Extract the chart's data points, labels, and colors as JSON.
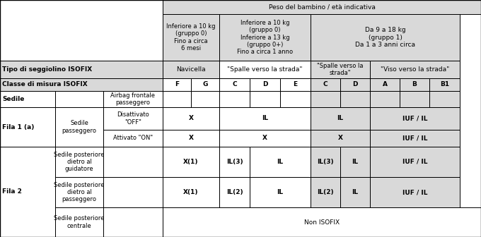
{
  "fig_w": 6.8,
  "fig_h": 3.36,
  "dpi": 100,
  "border_color": "#000000",
  "wh": "#ffffff",
  "gr": "#d9d9d9",
  "lw": 0.7,
  "fs": 6.5,
  "c0x": 0,
  "c0w": 78,
  "c1x": 78,
  "c1w": 68,
  "c2x": 146,
  "c2w": 84,
  "dcw": [
    40,
    40,
    43,
    43,
    43,
    42,
    42,
    42,
    42,
    43
  ],
  "dcstart": 230,
  "r0y": 316,
  "r0h": 20,
  "r1y": 250,
  "r1h": 66,
  "r2y": 225,
  "r2h": 25,
  "r3y": 207,
  "r3h": 18,
  "r4y": 184,
  "r4h": 23,
  "r5y": 152,
  "r5h": 32,
  "r6y": 128,
  "r6h": 24,
  "r7y": 85,
  "r7h": 43,
  "r8y": 42,
  "r8h": 43,
  "r9y": 0,
  "r9h": 42,
  "col_letters": [
    "F",
    "G",
    "C",
    "D",
    "E",
    "C",
    "D",
    "A",
    "B",
    "B1"
  ],
  "header_text": "Peso del bambino / età indicativa",
  "grp0a_text": "Inferiore a 10 kg\n(gruppo 0)\nFino a circa\n6 mesi",
  "grp0b_text": "Inferiore a 10 kg\n(gruppo 0)\nInferiore a 13 kg\n(gruppo 0+)\nFino a circa 1 anno",
  "grp1_text": "Da 9 a 18 kg\n(gruppo 1)\nDa 1 a 3 anni circa",
  "tipo_text": "Tipo di seggiolino ISOFIX",
  "navicella_text": "Navicella",
  "svs0_text": "\"Spalle verso la strada\"",
  "svs1_text": "\"Spalle verso la\nstrada\"",
  "vvs_text": "\"Viso verso la strada\"",
  "classe_text": "Classe di misura ISOFIX",
  "sedile_text": "Sedile",
  "airbag_text": "Airbag frontale\npasseggero",
  "fila1_text": "Fila 1 (a)",
  "sedpass_text": "Sedile\npasseggero",
  "disatt_text": "Disattivato\n\"OFF\"",
  "attiv_text": "Attivato \"ON\"",
  "fila2_text": "Fila 2",
  "guidatore_text": "Sedile posteriore\ndietro al\nguidatore",
  "passeggero_text": "Sedile posteriore\ndietro al\npasseggero",
  "centrale_text": "Sedile posteriore\ncentrale",
  "non_isofix_text": "Non ISOFIX"
}
